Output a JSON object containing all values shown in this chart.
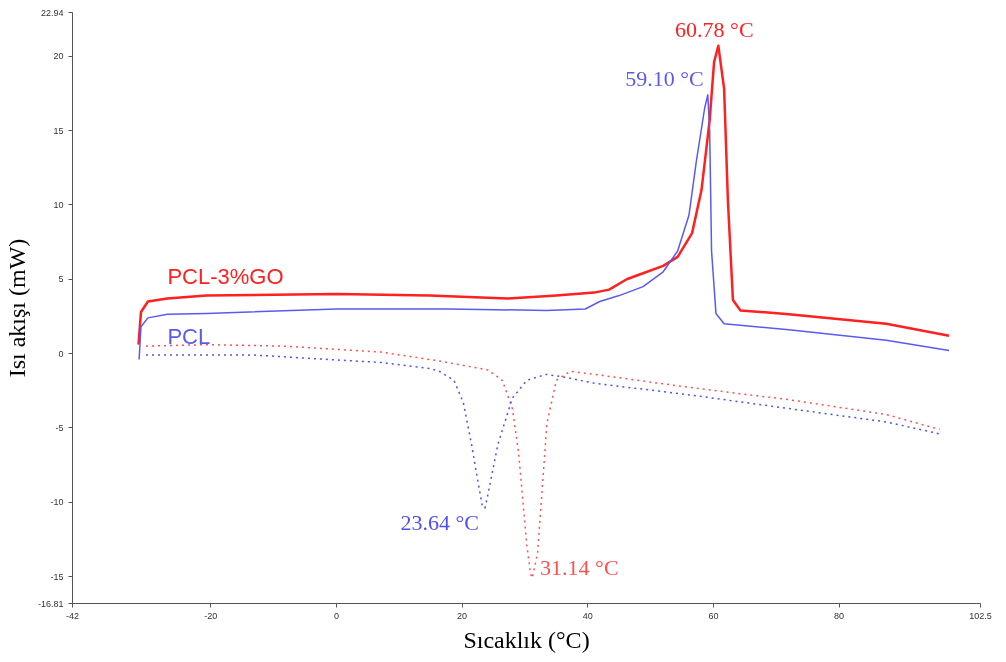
{
  "chart_data": {
    "type": "line",
    "xlabel": "Sıcaklık (°C)",
    "ylabel": "Isı akışı (mW)",
    "xlim": [
      -42,
      102.5
    ],
    "ylim": [
      -16.81,
      22.94
    ],
    "xticks": [
      -42,
      -20,
      0,
      20,
      40,
      60,
      80,
      102.5
    ],
    "yticks": [
      -16.81,
      -15,
      -10,
      -5,
      0,
      5,
      10,
      15,
      20,
      22.94
    ],
    "grid": false,
    "series": [
      {
        "name": "PCL-3%GO",
        "color": "#ff2020",
        "line_style": "solid",
        "x": [
          -31.5,
          -31.1,
          -30,
          -26.9,
          -20.7,
          0,
          14.8,
          27.2,
          35,
          41,
          43.4,
          46.2,
          48.8,
          52,
          54.3,
          56.6,
          58.1,
          59.4,
          60.1,
          60.78,
          61.7,
          62.3,
          63.1,
          64.3,
          72,
          87.5,
          97.5
        ],
        "values": [
          0.6,
          2.8,
          3.5,
          3.7,
          3.9,
          4.0,
          3.9,
          3.7,
          3.9,
          4.1,
          4.3,
          5.0,
          5.4,
          5.9,
          6.5,
          8.1,
          11,
          15.7,
          19.6,
          20.7,
          17.8,
          10.3,
          3.6,
          2.9,
          2.65,
          2.0,
          1.2
        ]
      },
      {
        "name": "PCL",
        "color": "#5a5af0",
        "line_style": "solid",
        "x": [
          -31.4,
          -31.1,
          -30,
          -26.9,
          -20.7,
          0,
          17.9,
          33.4,
          39.6,
          41.9,
          45,
          48.8,
          52,
          54.3,
          56.1,
          57.3,
          58.6,
          59.1,
          59.4,
          59.7,
          60.4,
          61.7,
          72,
          87.5,
          97.5
        ],
        "values": [
          -0.4,
          1.8,
          2.4,
          2.65,
          2.7,
          3.0,
          3.0,
          2.9,
          3.0,
          3.5,
          3.9,
          4.5,
          5.5,
          6.9,
          9.3,
          13,
          16.5,
          17.4,
          15,
          6.9,
          2.7,
          2.0,
          1.6,
          0.9,
          0.2
        ]
      },
      {
        "color": "#ff5050",
        "line_style": "dotted",
        "x": [
          -30.3,
          -20.7,
          -8.3,
          7.1,
          16.4,
          24.1,
          26.4,
          28,
          29,
          30.3,
          30.9,
          31.14,
          32,
          33.5,
          35,
          37.2,
          41.1,
          56.6,
          72,
          87.5,
          96
        ],
        "values": [
          0.5,
          0.6,
          0.5,
          0.1,
          -0.5,
          -1.1,
          -1.8,
          -3.7,
          -6.7,
          -12.9,
          -14.8,
          -15.1,
          -13.5,
          -4.7,
          -1.8,
          -1.2,
          -1.4,
          -2.3,
          -3.1,
          -4.1,
          -5.1
        ]
      },
      {
        "color": "#5050f0",
        "line_style": "dotted",
        "x": [
          -30.3,
          -13,
          -5.3,
          7.1,
          14.8,
          16.4,
          18.7,
          20.2,
          21.5,
          22.6,
          23.2,
          23.64,
          24.1,
          25.7,
          28,
          30.3,
          33.4,
          36.5,
          41.1,
          56.6,
          72,
          87.5,
          96
        ],
        "values": [
          -0.1,
          -0.1,
          -0.3,
          -0.6,
          -1.0,
          -1.2,
          -1.8,
          -3.3,
          -6.1,
          -8.8,
          -10.2,
          -10.4,
          -9.5,
          -6.1,
          -3,
          -1.8,
          -1.4,
          -1.6,
          -2.0,
          -2.8,
          -3.7,
          -4.6,
          -5.4
        ]
      }
    ],
    "annotations": [
      {
        "text": "60.78 °C",
        "x": 60.78,
        "y": 20.7
      },
      {
        "text": "59.10 °C",
        "x": 59.1,
        "y": 17.4
      },
      {
        "text": "23.64 °C",
        "x": 23.64,
        "y": -10.4
      },
      {
        "text": "31.14 °C",
        "x": 31.14,
        "y": -15.1
      }
    ]
  }
}
